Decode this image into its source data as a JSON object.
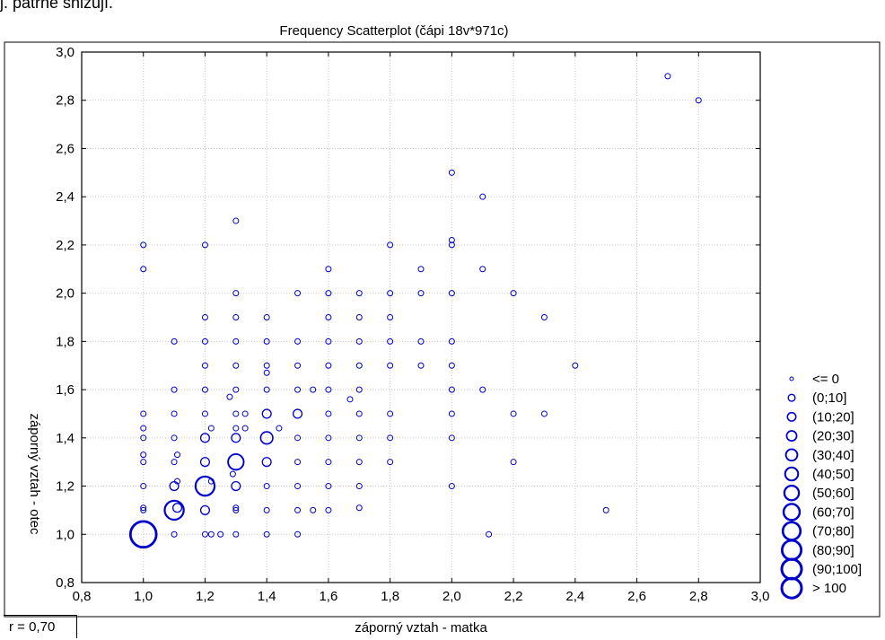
{
  "page_header": "j. patrně snižují.",
  "r_label": "r = 0,70",
  "chart_data": {
    "type": "scatter",
    "title": "Frequency Scatterplot (čápi 18v*971c)",
    "xlabel": "záporný vztah - matka",
    "ylabel": "záporný vztah - otec",
    "xlim": [
      0.8,
      3.0
    ],
    "ylim": [
      0.8,
      3.0
    ],
    "xticks": [
      "0,8",
      "1,0",
      "1,2",
      "1,4",
      "1,6",
      "1,8",
      "2,0",
      "2,2",
      "2,4",
      "2,6",
      "2,8",
      "3,0"
    ],
    "yticks": [
      "0,8",
      "1,0",
      "1,2",
      "1,4",
      "1,6",
      "1,8",
      "2,0",
      "2,2",
      "2,4",
      "2,6",
      "2,8",
      "3,0"
    ],
    "grid": true,
    "marker_color": "#0000cc",
    "legend_position": "right",
    "legend": [
      "<= 0",
      "(0;10]",
      "(10;20]",
      "(20;30]",
      "(30;40]",
      "(40;50]",
      "(50;60]",
      "(60;70]",
      "(70;80]",
      "(80;90]",
      "(90;100]",
      "> 100"
    ],
    "points": [
      {
        "x": 1.0,
        "y": 1.0,
        "size": 6
      },
      {
        "x": 1.0,
        "y": 1.1,
        "size": 0
      },
      {
        "x": 1.0,
        "y": 1.11,
        "size": 0
      },
      {
        "x": 1.0,
        "y": 1.2,
        "size": 0
      },
      {
        "x": 1.0,
        "y": 1.3,
        "size": 0
      },
      {
        "x": 1.0,
        "y": 1.33,
        "size": 0
      },
      {
        "x": 1.0,
        "y": 1.4,
        "size": 0
      },
      {
        "x": 1.0,
        "y": 1.44,
        "size": 0
      },
      {
        "x": 1.0,
        "y": 1.5,
        "size": 0
      },
      {
        "x": 1.0,
        "y": 2.1,
        "size": 0
      },
      {
        "x": 1.0,
        "y": 2.2,
        "size": 0
      },
      {
        "x": 1.1,
        "y": 1.0,
        "size": 0
      },
      {
        "x": 1.1,
        "y": 1.1,
        "size": 4
      },
      {
        "x": 1.1,
        "y": 1.2,
        "size": 1
      },
      {
        "x": 1.1,
        "y": 1.3,
        "size": 0
      },
      {
        "x": 1.1,
        "y": 1.4,
        "size": 0
      },
      {
        "x": 1.1,
        "y": 1.5,
        "size": 0
      },
      {
        "x": 1.1,
        "y": 1.6,
        "size": 0
      },
      {
        "x": 1.1,
        "y": 1.8,
        "size": 0
      },
      {
        "x": 1.11,
        "y": 1.11,
        "size": 1
      },
      {
        "x": 1.11,
        "y": 1.22,
        "size": 0
      },
      {
        "x": 1.11,
        "y": 1.33,
        "size": 0
      },
      {
        "x": 1.2,
        "y": 1.0,
        "size": 0
      },
      {
        "x": 1.2,
        "y": 1.1,
        "size": 1
      },
      {
        "x": 1.2,
        "y": 1.2,
        "size": 4
      },
      {
        "x": 1.2,
        "y": 1.3,
        "size": 1
      },
      {
        "x": 1.2,
        "y": 1.4,
        "size": 1
      },
      {
        "x": 1.2,
        "y": 1.5,
        "size": 0
      },
      {
        "x": 1.2,
        "y": 1.6,
        "size": 0
      },
      {
        "x": 1.2,
        "y": 1.7,
        "size": 0
      },
      {
        "x": 1.2,
        "y": 1.8,
        "size": 0
      },
      {
        "x": 1.2,
        "y": 1.9,
        "size": 0
      },
      {
        "x": 1.2,
        "y": 2.2,
        "size": 0
      },
      {
        "x": 1.22,
        "y": 1.0,
        "size": 0
      },
      {
        "x": 1.22,
        "y": 1.22,
        "size": 0
      },
      {
        "x": 1.22,
        "y": 1.44,
        "size": 0
      },
      {
        "x": 1.25,
        "y": 1.0,
        "size": 0
      },
      {
        "x": 1.28,
        "y": 1.57,
        "size": 0
      },
      {
        "x": 1.29,
        "y": 1.25,
        "size": 0
      },
      {
        "x": 1.3,
        "y": 1.0,
        "size": 0
      },
      {
        "x": 1.3,
        "y": 1.1,
        "size": 0
      },
      {
        "x": 1.3,
        "y": 1.11,
        "size": 0
      },
      {
        "x": 1.3,
        "y": 1.2,
        "size": 1
      },
      {
        "x": 1.3,
        "y": 1.3,
        "size": 3
      },
      {
        "x": 1.3,
        "y": 1.4,
        "size": 1
      },
      {
        "x": 1.3,
        "y": 1.44,
        "size": 0
      },
      {
        "x": 1.3,
        "y": 1.5,
        "size": 0
      },
      {
        "x": 1.3,
        "y": 1.6,
        "size": 0
      },
      {
        "x": 1.3,
        "y": 1.7,
        "size": 0
      },
      {
        "x": 1.3,
        "y": 1.8,
        "size": 0
      },
      {
        "x": 1.3,
        "y": 1.9,
        "size": 0
      },
      {
        "x": 1.3,
        "y": 2.0,
        "size": 0
      },
      {
        "x": 1.3,
        "y": 2.3,
        "size": 0
      },
      {
        "x": 1.33,
        "y": 1.44,
        "size": 0
      },
      {
        "x": 1.33,
        "y": 1.5,
        "size": 0
      },
      {
        "x": 1.4,
        "y": 1.0,
        "size": 0
      },
      {
        "x": 1.4,
        "y": 1.1,
        "size": 0
      },
      {
        "x": 1.4,
        "y": 1.2,
        "size": 0
      },
      {
        "x": 1.4,
        "y": 1.3,
        "size": 1
      },
      {
        "x": 1.4,
        "y": 1.4,
        "size": 2
      },
      {
        "x": 1.4,
        "y": 1.5,
        "size": 1
      },
      {
        "x": 1.4,
        "y": 1.6,
        "size": 0
      },
      {
        "x": 1.4,
        "y": 1.67,
        "size": 0
      },
      {
        "x": 1.4,
        "y": 1.7,
        "size": 0
      },
      {
        "x": 1.4,
        "y": 1.8,
        "size": 0
      },
      {
        "x": 1.4,
        "y": 1.9,
        "size": 0
      },
      {
        "x": 1.44,
        "y": 1.44,
        "size": 0
      },
      {
        "x": 1.5,
        "y": 1.0,
        "size": 0
      },
      {
        "x": 1.5,
        "y": 1.1,
        "size": 0
      },
      {
        "x": 1.5,
        "y": 1.2,
        "size": 0
      },
      {
        "x": 1.5,
        "y": 1.3,
        "size": 0
      },
      {
        "x": 1.5,
        "y": 1.4,
        "size": 0
      },
      {
        "x": 1.5,
        "y": 1.5,
        "size": 1
      },
      {
        "x": 1.5,
        "y": 1.6,
        "size": 0
      },
      {
        "x": 1.5,
        "y": 1.7,
        "size": 0
      },
      {
        "x": 1.5,
        "y": 1.8,
        "size": 0
      },
      {
        "x": 1.5,
        "y": 2.0,
        "size": 0
      },
      {
        "x": 1.55,
        "y": 1.1,
        "size": 0
      },
      {
        "x": 1.55,
        "y": 1.6,
        "size": 0
      },
      {
        "x": 1.6,
        "y": 1.1,
        "size": 0
      },
      {
        "x": 1.6,
        "y": 1.2,
        "size": 0
      },
      {
        "x": 1.6,
        "y": 1.3,
        "size": 0
      },
      {
        "x": 1.6,
        "y": 1.4,
        "size": 0
      },
      {
        "x": 1.6,
        "y": 1.5,
        "size": 0
      },
      {
        "x": 1.6,
        "y": 1.6,
        "size": 0
      },
      {
        "x": 1.6,
        "y": 1.7,
        "size": 0
      },
      {
        "x": 1.6,
        "y": 1.8,
        "size": 0
      },
      {
        "x": 1.6,
        "y": 1.9,
        "size": 0
      },
      {
        "x": 1.6,
        "y": 2.0,
        "size": 0
      },
      {
        "x": 1.6,
        "y": 2.1,
        "size": 0
      },
      {
        "x": 1.67,
        "y": 1.56,
        "size": 0
      },
      {
        "x": 1.7,
        "y": 1.11,
        "size": 0
      },
      {
        "x": 1.7,
        "y": 1.2,
        "size": 0
      },
      {
        "x": 1.7,
        "y": 1.3,
        "size": 0
      },
      {
        "x": 1.7,
        "y": 1.4,
        "size": 0
      },
      {
        "x": 1.7,
        "y": 1.5,
        "size": 0
      },
      {
        "x": 1.7,
        "y": 1.6,
        "size": 0
      },
      {
        "x": 1.7,
        "y": 1.7,
        "size": 0
      },
      {
        "x": 1.7,
        "y": 1.8,
        "size": 0
      },
      {
        "x": 1.7,
        "y": 1.9,
        "size": 0
      },
      {
        "x": 1.7,
        "y": 2.0,
        "size": 0
      },
      {
        "x": 1.8,
        "y": 1.3,
        "size": 0
      },
      {
        "x": 1.8,
        "y": 1.4,
        "size": 0
      },
      {
        "x": 1.8,
        "y": 1.5,
        "size": 0
      },
      {
        "x": 1.8,
        "y": 1.7,
        "size": 0
      },
      {
        "x": 1.8,
        "y": 1.8,
        "size": 0
      },
      {
        "x": 1.8,
        "y": 1.9,
        "size": 0
      },
      {
        "x": 1.8,
        "y": 2.0,
        "size": 0
      },
      {
        "x": 1.8,
        "y": 2.2,
        "size": 0
      },
      {
        "x": 1.9,
        "y": 1.7,
        "size": 0
      },
      {
        "x": 1.9,
        "y": 1.8,
        "size": 0
      },
      {
        "x": 1.9,
        "y": 2.0,
        "size": 0
      },
      {
        "x": 1.9,
        "y": 2.1,
        "size": 0
      },
      {
        "x": 2.0,
        "y": 1.2,
        "size": 0
      },
      {
        "x": 2.0,
        "y": 1.4,
        "size": 0
      },
      {
        "x": 2.0,
        "y": 1.5,
        "size": 0
      },
      {
        "x": 2.0,
        "y": 1.6,
        "size": 0
      },
      {
        "x": 2.0,
        "y": 1.7,
        "size": 0
      },
      {
        "x": 2.0,
        "y": 1.8,
        "size": 0
      },
      {
        "x": 2.0,
        "y": 2.0,
        "size": 0
      },
      {
        "x": 2.0,
        "y": 2.2,
        "size": 0
      },
      {
        "x": 2.0,
        "y": 2.22,
        "size": 0
      },
      {
        "x": 2.0,
        "y": 2.5,
        "size": 0
      },
      {
        "x": 2.1,
        "y": 1.6,
        "size": 0
      },
      {
        "x": 2.1,
        "y": 2.1,
        "size": 0
      },
      {
        "x": 2.1,
        "y": 2.4,
        "size": 0
      },
      {
        "x": 2.12,
        "y": 1.0,
        "size": 0
      },
      {
        "x": 2.2,
        "y": 1.3,
        "size": 0
      },
      {
        "x": 2.2,
        "y": 1.5,
        "size": 0
      },
      {
        "x": 2.2,
        "y": 2.0,
        "size": 0
      },
      {
        "x": 2.3,
        "y": 1.5,
        "size": 0
      },
      {
        "x": 2.3,
        "y": 1.9,
        "size": 0
      },
      {
        "x": 2.4,
        "y": 1.7,
        "size": 0
      },
      {
        "x": 2.5,
        "y": 1.1,
        "size": 0
      },
      {
        "x": 2.7,
        "y": 2.9,
        "size": 0
      },
      {
        "x": 2.8,
        "y": 2.8,
        "size": 0
      }
    ]
  }
}
